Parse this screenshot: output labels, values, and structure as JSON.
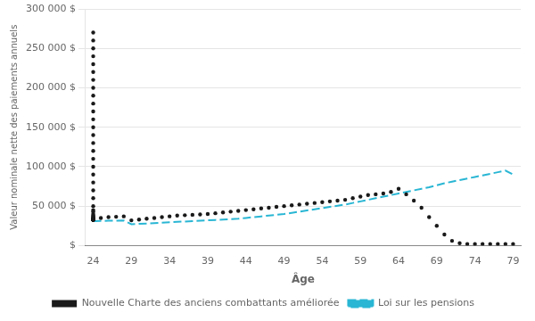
{
  "chart_data": {
    "type": "scatter",
    "title": "",
    "xlabel": "Âge",
    "ylabel": "Valeur nominale nette des paiements annuels",
    "xlim": [
      23,
      80
    ],
    "ylim": [
      0,
      300000
    ],
    "xticks": [
      24,
      29,
      34,
      39,
      44,
      49,
      54,
      59,
      64,
      69,
      74,
      79
    ],
    "yticks": [
      {
        "value": 0,
        "label": "$"
      },
      {
        "value": 50000,
        "label": "50 000 $"
      },
      {
        "value": 100000,
        "label": "100 000 $"
      },
      {
        "value": 150000,
        "label": "150 000 $"
      },
      {
        "value": 200000,
        "label": "200 000 $"
      },
      {
        "value": 250000,
        "label": "250 000 $"
      },
      {
        "value": 300000,
        "label": "300 000 $"
      }
    ],
    "grid": "y",
    "legend": "bottom",
    "series": [
      {
        "name": "Nouvelle Charte des anciens combattants améliorée",
        "type": "scatter",
        "marker": "circle",
        "color": "#1a1a1a",
        "x": [
          24,
          24,
          24,
          24,
          24,
          24,
          24,
          24,
          24,
          24,
          24,
          24,
          24,
          24,
          24,
          24,
          24,
          24,
          24,
          24,
          24,
          24,
          24,
          24,
          24,
          24,
          24,
          24,
          24,
          24,
          24,
          24,
          24,
          24,
          24,
          24,
          24,
          24,
          24,
          24,
          24,
          24,
          24,
          24,
          24,
          24,
          24,
          24,
          24,
          24,
          24,
          24,
          24,
          24,
          24,
          24,
          25,
          26,
          27,
          28,
          29,
          30,
          31,
          32,
          33,
          34,
          35,
          36,
          37,
          38,
          39,
          40,
          41,
          42,
          43,
          44,
          45,
          46,
          47,
          48,
          49,
          50,
          51,
          52,
          53,
          54,
          55,
          56,
          57,
          58,
          59,
          60,
          61,
          62,
          63,
          64,
          65,
          66,
          67,
          68,
          69,
          70,
          71,
          72,
          73,
          74,
          75,
          76,
          77,
          78,
          79
        ],
        "values": [
          270000,
          260000,
          250000,
          240000,
          230000,
          220000,
          210000,
          200000,
          190000,
          180000,
          170000,
          160000,
          150000,
          140000,
          130000,
          120000,
          110000,
          100000,
          90000,
          80000,
          70000,
          60000,
          50000,
          45000,
          43000,
          40000,
          38000,
          37000,
          36000,
          35000,
          34000,
          33000,
          33000,
          33000,
          33000,
          33000,
          33000,
          33000,
          33000,
          33000,
          33000,
          33000,
          33000,
          33000,
          33000,
          33000,
          33000,
          33000,
          33000,
          33000,
          33000,
          33000,
          33000,
          33000,
          33000,
          33000,
          35000,
          36000,
          36500,
          37000,
          32000,
          33000,
          34000,
          35000,
          36000,
          37000,
          38000,
          38500,
          39000,
          39500,
          40000,
          41000,
          42000,
          43000,
          44000,
          45000,
          46000,
          47000,
          48000,
          49000,
          50000,
          51000,
          52000,
          53000,
          54000,
          55000,
          56000,
          57000,
          58000,
          60000,
          62000,
          64000,
          65000,
          66000,
          68000,
          72000,
          65000,
          57000,
          48000,
          36000,
          25000,
          14000,
          6000,
          3000,
          2000,
          2000,
          2000,
          2000,
          2000,
          2000,
          2000
        ]
      },
      {
        "name": "Loi sur les pensions",
        "type": "line",
        "line_style": "dashed",
        "color": "#29b6d4",
        "x": [
          24,
          25,
          26,
          27,
          28,
          29,
          30,
          31,
          32,
          33,
          34,
          35,
          36,
          37,
          38,
          39,
          40,
          41,
          42,
          43,
          44,
          45,
          46,
          47,
          48,
          49,
          50,
          51,
          52,
          53,
          54,
          55,
          56,
          57,
          58,
          59,
          60,
          61,
          62,
          63,
          64,
          65,
          66,
          67,
          68,
          69,
          70,
          71,
          72,
          73,
          74,
          75,
          76,
          77,
          78,
          79
        ],
        "values": [
          31000,
          31200,
          31400,
          31600,
          31800,
          27000,
          27500,
          28000,
          28500,
          29000,
          29500,
          30000,
          30500,
          31000,
          31500,
          32000,
          32500,
          33000,
          33500,
          34000,
          35000,
          36000,
          37000,
          38000,
          39000,
          40000,
          41500,
          43000,
          44500,
          46000,
          47500,
          49000,
          50500,
          52000,
          54000,
          56000,
          58000,
          60000,
          62000,
          64000,
          66000,
          68000,
          70000,
          72000,
          74000,
          76500,
          79000,
          81000,
          83000,
          85000,
          87000,
          89000,
          91000,
          93000,
          95000,
          90000
        ]
      }
    ]
  }
}
